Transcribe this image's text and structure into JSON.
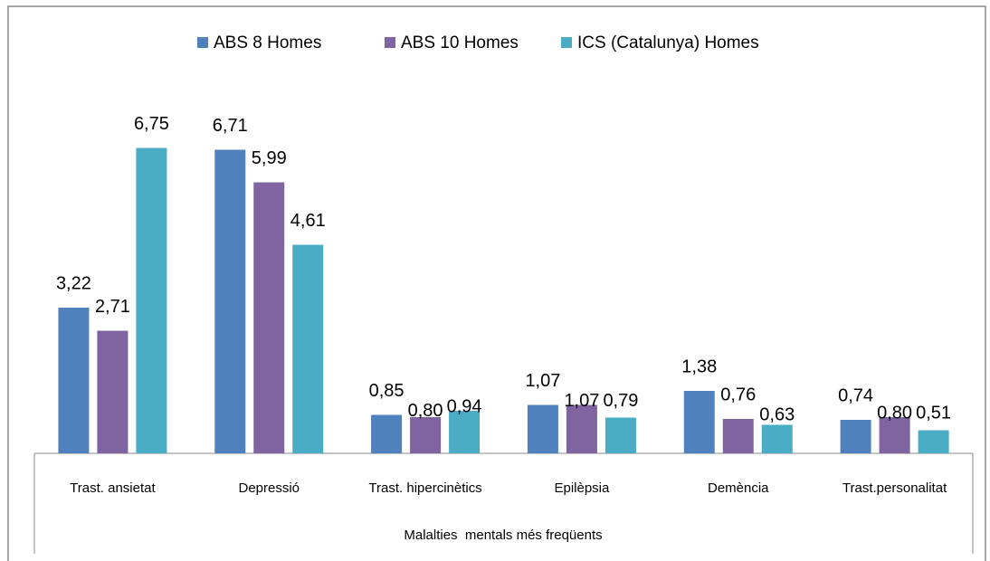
{
  "chart_data": {
    "type": "bar",
    "categories": [
      "Trast. ansietat",
      "Depressió",
      "Trast. hipercinètics",
      "Epilèpsia",
      "Demència",
      "Trast.personalitat"
    ],
    "series": [
      {
        "name": "ABS 8 Homes",
        "color": "#4f81bd",
        "values": [
          3.22,
          6.71,
          0.85,
          1.07,
          1.38,
          0.74
        ],
        "value_labels": [
          "3,22",
          "6,71",
          "0,85",
          "1,07",
          "1,38",
          "0,74"
        ]
      },
      {
        "name": "ABS 10 Homes",
        "color": "#8064a2",
        "values": [
          2.71,
          5.99,
          0.8,
          1.07,
          0.76,
          0.8
        ],
        "value_labels": [
          "2,71",
          "5,99",
          "0,80",
          "1,07",
          "0,76",
          "0,80"
        ]
      },
      {
        "name": "ICS (Catalunya) Homes",
        "color": "#4bacc6",
        "values": [
          6.75,
          4.61,
          0.94,
          0.79,
          0.63,
          0.51
        ],
        "value_labels": [
          "6,75",
          "4,61",
          "0,94",
          "0,79",
          "0,63",
          "0,51"
        ]
      }
    ],
    "xlabel": "Malalties  mentals més freqüents",
    "ylim": [
      0,
      8
    ],
    "legend": "top"
  }
}
